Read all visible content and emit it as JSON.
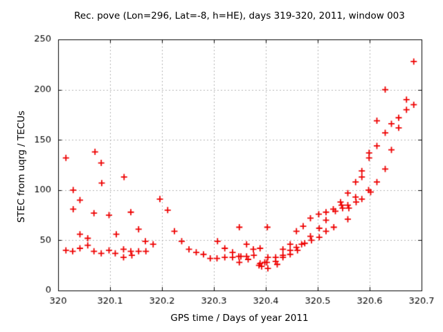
{
  "chart_data": {
    "type": "scatter",
    "title": "Rec. pove (Lon=296, Lat=-8, h=HE), days 319-320, 2011, window 003",
    "xlabel": "GPS time / Days of year 2011",
    "ylabel": "STEC from uqrg / TECUs",
    "xlim": [
      320,
      320.7
    ],
    "ylim": [
      0,
      250
    ],
    "xtick_values": [
      320,
      320.1,
      320.2,
      320.3,
      320.4,
      320.5,
      320.6,
      320.7
    ],
    "xtick_labels": [
      "320",
      "320.1",
      "320.2",
      "320.3",
      "320.4",
      "320.5",
      "320.6",
      "320.7"
    ],
    "ytick_values": [
      0,
      50,
      100,
      150,
      200,
      250
    ],
    "ytick_labels": [
      "0",
      "50",
      "100",
      "150",
      "200",
      "250"
    ],
    "grid": true,
    "legend": false,
    "marker": "plus",
    "marker_color": "#ee0000",
    "grid_color": "#b0b0b0",
    "axis_color": "#000000",
    "series": [
      {
        "name": "STEC",
        "points": [
          [
            320.015,
            132
          ],
          [
            320.071,
            138
          ],
          [
            320.083,
            127
          ],
          [
            320.029,
            100
          ],
          [
            320.084,
            107
          ],
          [
            320.127,
            113
          ],
          [
            320.042,
            90
          ],
          [
            320.029,
            81
          ],
          [
            320.069,
            77
          ],
          [
            320.098,
            75
          ],
          [
            320.14,
            78
          ],
          [
            320.196,
            91
          ],
          [
            320.211,
            80
          ],
          [
            320.042,
            56
          ],
          [
            320.057,
            52
          ],
          [
            320.112,
            56
          ],
          [
            320.155,
            61
          ],
          [
            320.224,
            59
          ],
          [
            320.042,
            42
          ],
          [
            320.057,
            45
          ],
          [
            320.015,
            40
          ],
          [
            320.028,
            39
          ],
          [
            320.069,
            39
          ],
          [
            320.083,
            37
          ],
          [
            320.098,
            40
          ],
          [
            320.11,
            37
          ],
          [
            320.126,
            41
          ],
          [
            320.126,
            33
          ],
          [
            320.14,
            39
          ],
          [
            320.142,
            35
          ],
          [
            320.155,
            39
          ],
          [
            320.168,
            49
          ],
          [
            320.169,
            39
          ],
          [
            320.183,
            46
          ],
          [
            320.238,
            49
          ],
          [
            320.252,
            41
          ],
          [
            320.266,
            38
          ],
          [
            320.28,
            36
          ],
          [
            320.293,
            32
          ],
          [
            320.306,
            32
          ],
          [
            320.307,
            49
          ],
          [
            320.321,
            42
          ],
          [
            320.321,
            33
          ],
          [
            320.336,
            38
          ],
          [
            320.336,
            33
          ],
          [
            320.348,
            34
          ],
          [
            320.352,
            34
          ],
          [
            320.349,
            28
          ],
          [
            320.349,
            63
          ],
          [
            320.363,
            46
          ],
          [
            320.363,
            34
          ],
          [
            320.366,
            31
          ],
          [
            320.376,
            41
          ],
          [
            320.377,
            35
          ],
          [
            320.389,
            42
          ],
          [
            320.387,
            25
          ],
          [
            320.389,
            27
          ],
          [
            320.392,
            24
          ],
          [
            320.398,
            28
          ],
          [
            320.402,
            28
          ],
          [
            320.404,
            33
          ],
          [
            320.404,
            22
          ],
          [
            320.403,
            63
          ],
          [
            320.419,
            33
          ],
          [
            320.419,
            29
          ],
          [
            320.422,
            26
          ],
          [
            320.433,
            41
          ],
          [
            320.433,
            35
          ],
          [
            320.433,
            33
          ],
          [
            320.447,
            46
          ],
          [
            320.447,
            40
          ],
          [
            320.447,
            36
          ],
          [
            320.459,
            59
          ],
          [
            320.459,
            43
          ],
          [
            320.461,
            40
          ],
          [
            320.472,
            64
          ],
          [
            320.469,
            46
          ],
          [
            320.475,
            47
          ],
          [
            320.486,
            72
          ],
          [
            320.486,
            54
          ],
          [
            320.488,
            50
          ],
          [
            320.502,
            76
          ],
          [
            320.503,
            62
          ],
          [
            320.503,
            53
          ],
          [
            320.516,
            78
          ],
          [
            320.516,
            70
          ],
          [
            320.516,
            59
          ],
          [
            320.53,
            81
          ],
          [
            320.534,
            79
          ],
          [
            320.531,
            63
          ],
          [
            320.544,
            88
          ],
          [
            320.546,
            85
          ],
          [
            320.548,
            82
          ],
          [
            320.558,
            97
          ],
          [
            320.558,
            85
          ],
          [
            320.56,
            82
          ],
          [
            320.558,
            71
          ],
          [
            320.573,
            108
          ],
          [
            320.573,
            93
          ],
          [
            320.574,
            88
          ],
          [
            320.585,
            119
          ],
          [
            320.585,
            113
          ],
          [
            320.585,
            91
          ],
          [
            320.599,
            137
          ],
          [
            320.599,
            132
          ],
          [
            320.598,
            100
          ],
          [
            320.602,
            98
          ],
          [
            320.614,
            169
          ],
          [
            320.614,
            144
          ],
          [
            320.614,
            108
          ],
          [
            320.63,
            200
          ],
          [
            320.63,
            157
          ],
          [
            320.63,
            121
          ],
          [
            320.642,
            166
          ],
          [
            320.642,
            140
          ],
          [
            320.656,
            172
          ],
          [
            320.656,
            162
          ],
          [
            320.671,
            190
          ],
          [
            320.671,
            180
          ],
          [
            320.685,
            228
          ],
          [
            320.685,
            185
          ]
        ]
      }
    ]
  }
}
